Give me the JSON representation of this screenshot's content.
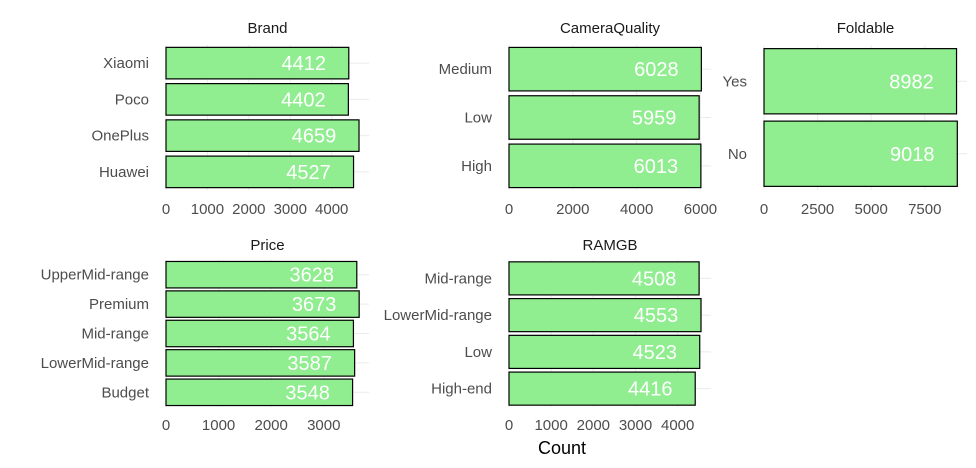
{
  "chart_data": {
    "type": "bar",
    "orientation": "horizontal",
    "xlabel": "Count",
    "bar_color": "#90EE90",
    "bar_outline": "#000000",
    "label_color": "#FFFFFF",
    "grid": true,
    "panels": [
      {
        "title": "Brand",
        "categories": [
          "Xiaomi",
          "Poco",
          "OnePlus",
          "Huawei"
        ],
        "values": [
          4412,
          4402,
          4659,
          4527
        ],
        "xlim": [
          0,
          4900
        ],
        "ticks": [
          "0",
          "1000",
          "2000",
          "3000",
          "4000"
        ]
      },
      {
        "title": "CameraQuality",
        "categories": [
          "Medium",
          "Low",
          "High"
        ],
        "values": [
          6028,
          5959,
          6013
        ],
        "xlim": [
          0,
          6330
        ],
        "ticks": [
          "0",
          "2000",
          "4000",
          "6000"
        ]
      },
      {
        "title": "Foldable",
        "categories": [
          "Yes",
          "No"
        ],
        "values": [
          8982,
          9018
        ],
        "xlim": [
          0,
          9470
        ],
        "ticks": [
          "0",
          "2500",
          "5000",
          "7500"
        ]
      },
      {
        "title": "Price",
        "categories": [
          "UpperMid-range",
          "Premium",
          "Mid-range",
          "LowerMid-range",
          "Budget"
        ],
        "values": [
          3628,
          3673,
          3564,
          3587,
          3548
        ],
        "xlim": [
          0,
          3860
        ],
        "ticks": [
          "0",
          "1000",
          "2000",
          "3000"
        ]
      },
      {
        "title": "RAMGB",
        "categories": [
          "Mid-range",
          "LowerMid-range",
          "Low",
          "High-end"
        ],
        "values": [
          4508,
          4553,
          4523,
          4416
        ],
        "xlim": [
          0,
          4790
        ],
        "ticks": [
          "0",
          "1000",
          "2000",
          "3000",
          "4000"
        ]
      }
    ]
  }
}
